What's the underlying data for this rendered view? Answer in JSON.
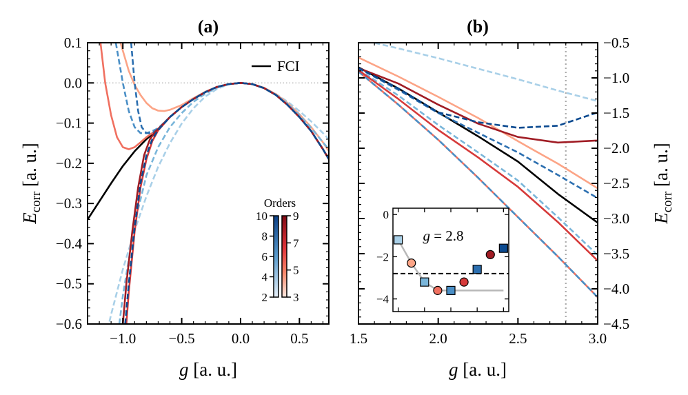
{
  "chart_data": [
    {
      "panel": "a",
      "type": "line",
      "title": "(a)",
      "xlabel": {
        "var": "g",
        "unit": "[a. u.]"
      },
      "ylabel": {
        "var": "E",
        "sub": "corr",
        "unit": "[a. u.]"
      },
      "xlim": [
        -1.3,
        0.75
      ],
      "ylim": [
        -0.6,
        0.1
      ],
      "xticks": [
        -1.0,
        -0.5,
        0.0,
        0.5
      ],
      "xtick_labels": [
        "−1.0",
        "−0.5",
        "0.0",
        "0.5"
      ],
      "yticks": [
        0.1,
        0.0,
        -0.1,
        -0.2,
        -0.3,
        -0.4,
        -0.5,
        -0.6
      ],
      "ytick_labels": [
        "0.1",
        "0.0",
        "−0.1",
        "−0.2",
        "−0.3",
        "−0.4",
        "−0.5",
        "−0.6"
      ],
      "y_axis_side": "left",
      "reference_line": {
        "orientation": "horizontal",
        "value": 0.0,
        "style": "dotted",
        "color": "#aaaaaa"
      },
      "legend": {
        "placement": "top-right",
        "entries": [
          {
            "label": "FCI",
            "color": "#000000"
          }
        ]
      },
      "colorbar": {
        "title": "Orders",
        "even_ticks": [
          "10",
          "8",
          "6",
          "4",
          "2"
        ],
        "odd_ticks": [
          "9",
          "7",
          "5",
          "3"
        ],
        "even_colormap": [
          "#0b3f86",
          "#e8f1fa"
        ],
        "odd_colormap": [
          "#7f0a14",
          "#fde8df"
        ]
      },
      "series": [
        {
          "label": "FCI",
          "color": "#000000",
          "style": "solid",
          "x": [
            -1.3,
            -1.2,
            -1.1,
            -1.0,
            -0.9,
            -0.8,
            -0.7,
            -0.6,
            -0.5,
            -0.4,
            -0.3,
            -0.2,
            -0.1,
            0,
            0.1,
            0.2,
            0.3,
            0.4,
            0.5,
            0.6,
            0.7,
            0.75
          ],
          "y": [
            -0.34,
            -0.295,
            -0.25,
            -0.207,
            -0.17,
            -0.14,
            -0.115,
            -0.085,
            -0.06,
            -0.04,
            -0.023,
            -0.01,
            -0.003,
            0,
            -0.003,
            -0.013,
            -0.03,
            -0.055,
            -0.085,
            -0.12,
            -0.165,
            -0.19
          ]
        },
        {
          "order": 2,
          "color": "#a9d0e8",
          "style": "dashed",
          "x": [
            -1.13,
            -1.1,
            -1.0,
            -0.9,
            -0.8,
            -0.7,
            -0.6,
            -0.5,
            -0.4,
            -0.3,
            -0.2,
            -0.1,
            0,
            0.1,
            0.2,
            0.3,
            0.4,
            0.5,
            0.6,
            0.7,
            0.75
          ],
          "y": [
            -0.614,
            -0.577,
            -0.464,
            -0.367,
            -0.282,
            -0.209,
            -0.15,
            -0.101,
            -0.063,
            -0.034,
            -0.015,
            -0.0035,
            0,
            -0.0033,
            -0.0127,
            -0.0274,
            -0.0467,
            -0.07,
            -0.096,
            -0.125,
            -0.14
          ]
        },
        {
          "order": 3,
          "color": "#fca486",
          "style": "solid",
          "x": [
            -1.02,
            -0.95,
            -0.9,
            -0.85,
            -0.8,
            -0.75,
            -0.7,
            -0.65,
            -0.6,
            -0.5,
            -0.4,
            -0.3,
            -0.2,
            -0.1,
            0,
            0.1,
            0.2,
            0.3,
            0.4,
            0.5,
            0.6,
            0.7,
            0.75
          ],
          "y": [
            0.1,
            0.03,
            -0.005,
            -0.03,
            -0.05,
            -0.063,
            -0.069,
            -0.07,
            -0.067,
            -0.055,
            -0.038,
            -0.022,
            -0.01,
            -0.003,
            0,
            -0.003,
            -0.012,
            -0.028,
            -0.05,
            -0.078,
            -0.11,
            -0.148,
            -0.17
          ]
        },
        {
          "order": 4,
          "color": "#7ab6da",
          "style": "dashed",
          "x": [
            -1.03,
            -1.0,
            -0.9,
            -0.8,
            -0.7,
            -0.6,
            -0.5,
            -0.4,
            -0.3,
            -0.2,
            -0.1,
            0,
            0.1,
            0.2,
            0.3,
            0.4,
            0.5,
            0.6,
            0.7,
            0.75
          ],
          "y": [
            -0.6,
            -0.53,
            -0.35,
            -0.23,
            -0.16,
            -0.11,
            -0.075,
            -0.047,
            -0.027,
            -0.012,
            -0.003,
            0,
            -0.003,
            -0.013,
            -0.029,
            -0.052,
            -0.08,
            -0.112,
            -0.148,
            -0.165
          ]
        },
        {
          "order": 5,
          "color": "#f07060",
          "style": "solid",
          "x": [
            -1.19,
            -1.15,
            -1.1,
            -1.05,
            -1.0,
            -0.95,
            -0.9,
            -0.85,
            -0.8,
            -0.75,
            -0.7,
            -0.6,
            -0.5,
            -0.4,
            -0.3,
            -0.2,
            -0.1,
            0,
            0.1,
            0.2,
            0.3,
            0.4,
            0.5,
            0.6,
            0.7,
            0.75
          ],
          "y": [
            0.1,
            0.0,
            -0.08,
            -0.135,
            -0.16,
            -0.165,
            -0.16,
            -0.148,
            -0.135,
            -0.125,
            -0.114,
            -0.085,
            -0.06,
            -0.04,
            -0.023,
            -0.01,
            -0.003,
            0,
            -0.003,
            -0.013,
            -0.03,
            -0.055,
            -0.085,
            -0.12,
            -0.165,
            -0.19
          ]
        },
        {
          "order": 6,
          "color": "#4a8fc6",
          "style": "dashed",
          "x": [
            -1.06,
            -1.0,
            -0.95,
            -0.9,
            -0.85,
            -0.8,
            -0.75,
            -0.7,
            -0.6,
            -0.5,
            -0.4,
            -0.3,
            -0.2,
            -0.1,
            0,
            0.1,
            0.2,
            0.3,
            0.4,
            0.5,
            0.6,
            0.7,
            0.75
          ],
          "y": [
            0.1,
            0.0,
            -0.07,
            -0.11,
            -0.125,
            -0.125,
            -0.12,
            -0.113,
            -0.085,
            -0.06,
            -0.04,
            -0.023,
            -0.01,
            -0.003,
            0,
            -0.003,
            -0.013,
            -0.03,
            -0.055,
            -0.085,
            -0.12,
            -0.165,
            -0.19
          ]
        },
        {
          "order": 7,
          "color": "#d63a3a",
          "style": "solid",
          "x": [
            -0.97,
            -0.95,
            -0.9,
            -0.85,
            -0.8,
            -0.75,
            -0.7,
            -0.6,
            -0.5,
            -0.4,
            -0.3,
            -0.2,
            -0.1,
            0,
            0.1,
            0.2,
            0.3,
            0.4,
            0.5,
            0.6,
            0.7,
            0.75
          ],
          "y": [
            -0.6,
            -0.52,
            -0.37,
            -0.26,
            -0.19,
            -0.145,
            -0.118,
            -0.085,
            -0.06,
            -0.04,
            -0.023,
            -0.01,
            -0.003,
            0,
            -0.003,
            -0.013,
            -0.03,
            -0.055,
            -0.085,
            -0.12,
            -0.165,
            -0.19
          ]
        },
        {
          "order": 8,
          "color": "#2c6fb0",
          "style": "dashed",
          "x": [
            -0.93,
            -0.9,
            -0.87,
            -0.84,
            -0.8,
            -0.75,
            -0.7,
            -0.6,
            -0.5,
            -0.4,
            -0.3,
            -0.2,
            -0.1,
            0,
            0.1,
            0.2,
            0.3,
            0.4,
            0.5,
            0.6,
            0.7,
            0.75
          ],
          "y": [
            0.1,
            0.0,
            -0.07,
            -0.11,
            -0.125,
            -0.125,
            -0.115,
            -0.085,
            -0.06,
            -0.04,
            -0.023,
            -0.01,
            -0.003,
            0,
            -0.003,
            -0.013,
            -0.03,
            -0.055,
            -0.085,
            -0.12,
            -0.165,
            -0.19
          ]
        },
        {
          "order": 9,
          "color": "#a01c24",
          "style": "solid",
          "x": [
            -1.0,
            -0.97,
            -0.92,
            -0.87,
            -0.82,
            -0.77,
            -0.72,
            -0.7,
            -0.6,
            -0.5,
            -0.4,
            -0.3,
            -0.2,
            -0.1,
            0,
            0.1,
            0.2,
            0.3,
            0.4,
            0.5,
            0.6,
            0.7,
            0.75
          ],
          "y": [
            -0.6,
            -0.5,
            -0.37,
            -0.26,
            -0.18,
            -0.14,
            -0.12,
            -0.115,
            -0.085,
            -0.06,
            -0.04,
            -0.023,
            -0.01,
            -0.003,
            0,
            -0.003,
            -0.013,
            -0.03,
            -0.055,
            -0.085,
            -0.12,
            -0.165,
            -0.19
          ]
        },
        {
          "order": 10,
          "color": "#0b4a90",
          "style": "dashed",
          "x": [
            -0.98,
            -0.95,
            -0.9,
            -0.85,
            -0.8,
            -0.75,
            -0.7,
            -0.6,
            -0.5,
            -0.4,
            -0.3,
            -0.2,
            -0.1,
            0,
            0.1,
            0.2,
            0.3,
            0.4,
            0.5,
            0.6,
            0.7,
            0.75
          ],
          "y": [
            -0.6,
            -0.5,
            -0.36,
            -0.25,
            -0.18,
            -0.14,
            -0.117,
            -0.085,
            -0.06,
            -0.04,
            -0.023,
            -0.01,
            -0.003,
            0,
            -0.003,
            -0.013,
            -0.03,
            -0.055,
            -0.085,
            -0.12,
            -0.165,
            -0.19
          ]
        }
      ]
    },
    {
      "panel": "b",
      "type": "line",
      "title": "(b)",
      "xlabel": {
        "var": "g",
        "unit": "[a. u.]"
      },
      "ylabel": {
        "var": "E",
        "sub": "corr",
        "unit": "[a. u.]"
      },
      "xlim": [
        1.5,
        3.0
      ],
      "ylim": [
        -4.5,
        -0.5
      ],
      "xticks": [
        1.5,
        2.0,
        2.5,
        3.0
      ],
      "xtick_labels": [
        "1.5",
        "2.0",
        "2.5",
        "3.0"
      ],
      "yticks": [
        -0.5,
        -1.0,
        -1.5,
        -2.0,
        -2.5,
        -3.0,
        -3.5,
        -4.0,
        -4.5
      ],
      "ytick_labels": [
        "−0.5",
        "−1.0",
        "−1.5",
        "−2.0",
        "−2.5",
        "−3.0",
        "−3.5",
        "−4.0",
        "−4.5"
      ],
      "y_axis_side": "right",
      "reference_line": {
        "orientation": "vertical",
        "value": 2.8,
        "style": "dotted",
        "color": "#aaaaaa"
      },
      "series": [
        {
          "label": "FCI",
          "color": "#000000",
          "style": "solid",
          "x": [
            1.5,
            1.75,
            2.0,
            2.25,
            2.5,
            2.75,
            3.0
          ],
          "y": [
            -0.85,
            -1.15,
            -1.49,
            -1.83,
            -2.19,
            -2.65,
            -3.06
          ]
        },
        {
          "order": 2,
          "color": "#a9d0e8",
          "style": "dashed",
          "x": [
            1.5,
            1.75,
            2.0,
            2.25,
            2.5,
            2.75,
            3.0
          ],
          "y": [
            -0.45,
            -0.58,
            -0.72,
            -0.87,
            -1.02,
            -1.18,
            -1.33
          ]
        },
        {
          "order": 3,
          "color": "#fca486",
          "style": "solid",
          "x": [
            1.5,
            1.75,
            2.0,
            2.25,
            2.5,
            2.75,
            3.0
          ],
          "y": [
            -0.71,
            -0.98,
            -1.27,
            -1.57,
            -1.9,
            -2.22,
            -2.57
          ]
        },
        {
          "order": 4,
          "color": "#7ab6da",
          "style": "dashed",
          "x": [
            1.5,
            1.75,
            2.0,
            2.25,
            2.5,
            2.75,
            3.0
          ],
          "y": [
            -0.88,
            -1.25,
            -1.67,
            -2.06,
            -2.46,
            -2.98,
            -3.52
          ]
        },
        {
          "order": 5,
          "color": "#f07060",
          "style": "solid",
          "x": [
            1.5,
            1.75,
            2.0,
            2.25,
            2.5,
            2.75,
            3.0
          ],
          "y": [
            -0.91,
            -1.38,
            -1.88,
            -2.42,
            -2.98,
            -3.54,
            -4.12
          ]
        },
        {
          "order": 6,
          "color": "#4a8fc6",
          "style": "dashed",
          "x": [
            1.5,
            1.75,
            2.0,
            2.25,
            2.5,
            2.75,
            3.0
          ],
          "y": [
            -0.91,
            -1.38,
            -1.88,
            -2.42,
            -2.98,
            -3.54,
            -4.12
          ]
        },
        {
          "order": 7,
          "color": "#d63a3a",
          "style": "solid",
          "x": [
            1.5,
            1.75,
            2.0,
            2.25,
            2.5,
            2.75,
            3.0
          ],
          "y": [
            -0.89,
            -1.3,
            -1.74,
            -2.13,
            -2.55,
            -3.05,
            -3.6
          ]
        },
        {
          "order": 8,
          "color": "#2c6fb0",
          "style": "dashed",
          "x": [
            1.5,
            1.75,
            2.0,
            2.25,
            2.5,
            2.75,
            3.0
          ],
          "y": [
            -0.86,
            -1.17,
            -1.5,
            -1.78,
            -2.06,
            -2.38,
            -2.71
          ]
        },
        {
          "order": 9,
          "color": "#a01c24",
          "style": "solid",
          "x": [
            1.5,
            1.75,
            2.0,
            2.25,
            2.5,
            2.75,
            3.0
          ],
          "y": [
            -0.86,
            -1.08,
            -1.38,
            -1.65,
            -1.84,
            -1.92,
            -1.89
          ]
        },
        {
          "order": 10,
          "color": "#0b4a90",
          "style": "dashed",
          "x": [
            1.5,
            1.75,
            2.0,
            2.25,
            2.5,
            2.75,
            3.0
          ],
          "y": [
            -0.86,
            -1.15,
            -1.49,
            -1.63,
            -1.71,
            -1.68,
            -1.49
          ]
        }
      ],
      "inset": {
        "type": "scatter",
        "annotation": {
          "var": "g",
          "value": "2.8"
        },
        "xlim": [
          1.6,
          10.4
        ],
        "ylim": [
          -4.6,
          0.3
        ],
        "yticks": [
          0,
          -2,
          -4
        ],
        "ytick_labels": [
          "0",
          "−2",
          "−4"
        ],
        "xticks": [
          2,
          4,
          6,
          8,
          10
        ],
        "fci_value": -2.8,
        "points": [
          {
            "order": 2,
            "value": -1.2,
            "marker": "square",
            "color": "#a9d0e8"
          },
          {
            "order": 3,
            "value": -2.3,
            "marker": "circle",
            "color": "#fca486"
          },
          {
            "order": 4,
            "value": -3.2,
            "marker": "square",
            "color": "#7ab6da"
          },
          {
            "order": 5,
            "value": -3.6,
            "marker": "circle",
            "color": "#f07060"
          },
          {
            "order": 6,
            "value": -3.6,
            "marker": "square",
            "color": "#4a8fc6"
          },
          {
            "order": 7,
            "value": -3.2,
            "marker": "circle",
            "color": "#d63a3a"
          },
          {
            "order": 8,
            "value": -2.6,
            "marker": "square",
            "color": "#2c6fb0"
          },
          {
            "order": 9,
            "value": -1.9,
            "marker": "circle",
            "color": "#a01c24"
          },
          {
            "order": 10,
            "value": -1.6,
            "marker": "square",
            "color": "#0b4a90"
          }
        ],
        "gray_line": {
          "x": [
            2,
            3,
            4,
            5,
            6,
            10
          ],
          "y": [
            -1.2,
            -2.3,
            -3.2,
            -3.6,
            -3.6,
            -3.6
          ],
          "color": "#b8b8b8"
        }
      }
    }
  ]
}
